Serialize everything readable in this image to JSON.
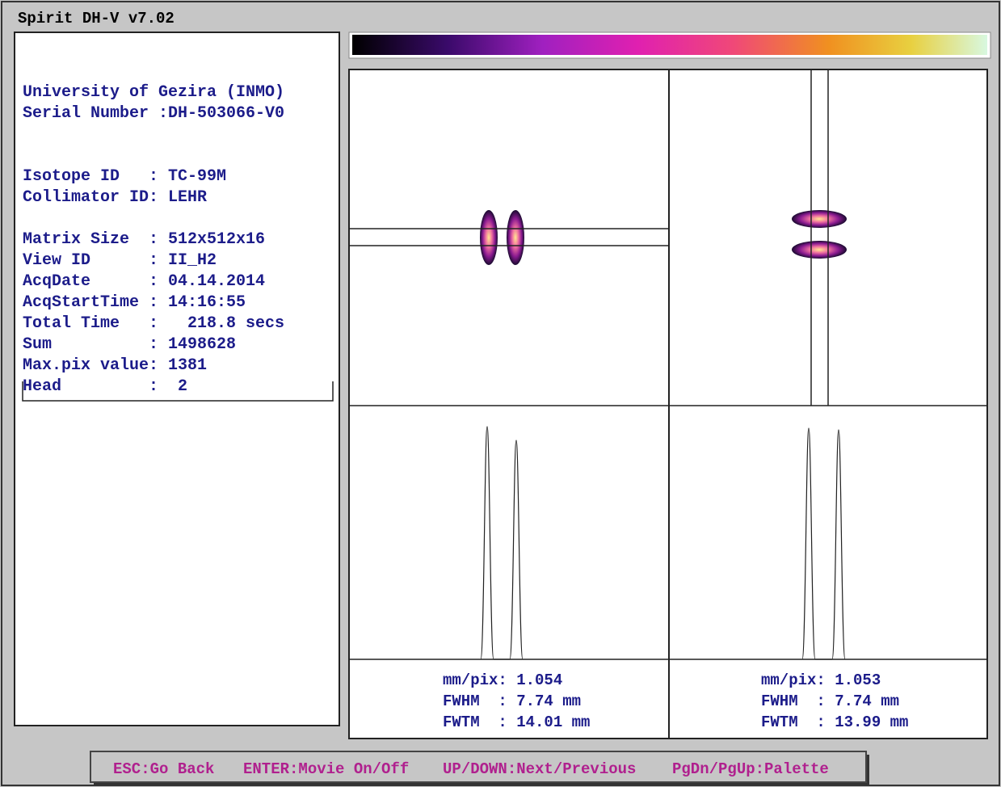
{
  "window": {
    "title": "Spirit DH-V v7.02"
  },
  "info": {
    "lines": [
      "University of Gezira (INMO)",
      "Serial Number :DH-503066-V0",
      "Isotope ID   : TC-99M",
      "Collimator ID: LEHR",
      "Matrix Size  : 512x512x16",
      "View ID      : II_H2",
      "AcqDate      : 04.14.2014",
      "AcqStartTime : 14:16:55",
      "Total Time   :   218.8 secs",
      "Sum          : 1498628",
      "Max.pix value: 1381",
      "Head         :  2"
    ]
  },
  "panels": [
    {
      "lines": [
        "mm/pix: 1.054",
        "FWHM  : 7.74 mm",
        "FWTM  : 14.01 mm"
      ]
    },
    {
      "lines": [
        "mm/pix: 1.053",
        "FWHM  : 7.74 mm",
        "FWTM  : 13.99 mm"
      ]
    }
  ],
  "footer": {
    "commands": [
      "ESC:Go Back",
      "ENTER:Movie On/Off",
      "UP/DOWN:Next/Previous",
      "PgDn/PgUp:Palette"
    ]
  }
}
